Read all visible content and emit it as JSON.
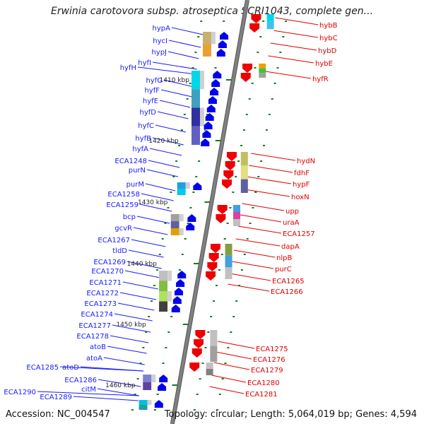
{
  "title": "Erwinia carotovora subsp. atroseptica SCRI1043, complete gen...",
  "accession": "Accession: NC_004547",
  "topology": "Topology: circular; Length: 5,064,019 bp; Genes: 4,594",
  "colors": {
    "backbone": "#808080",
    "left_label": "#1a1aff",
    "right_label": "#e00000",
    "forward_arrow": "#0000ee",
    "reverse_arrow": "#ee0000",
    "tick": "#1a7a1a"
  },
  "scale_labels": [
    "1410 kbp",
    "1420 kbp",
    "1430 kbp",
    "1440 kbp",
    "1450 kbp",
    "1460 kbp"
  ],
  "left_genes": [
    "hypA",
    "hycI",
    "hypJ",
    "hyfI",
    "hyfH",
    "hyfG",
    "hyfF",
    "hyfE",
    "hyfD",
    "hyfC",
    "hyfB",
    "hyfA",
    "ECA1248",
    "purN",
    "purM",
    "ECA1258",
    "ECA1259",
    "bcp",
    "gcvR",
    "ECA1267",
    "tldD",
    "ECA1269",
    "ECA1270",
    "ECA1271",
    "ECA1272",
    "ECA1273",
    "ECA1274",
    "ECA1277",
    "ECA1278",
    "atoB",
    "atoA",
    "ECA1285",
    "atoD",
    "ECA1286",
    "citM",
    "ECA1290",
    "ECA1289"
  ],
  "right_genes": [
    "hybB",
    "hybC",
    "hybD",
    "hybE",
    "hyfR",
    "hydN",
    "fdhF",
    "hypF",
    "hoxN",
    "upp",
    "uraA",
    "ECA1257",
    "dapA",
    "nlpB",
    "purC",
    "ECA1265",
    "ECA1266",
    "ECA1275",
    "ECA1276",
    "ECA1279",
    "ECA1280",
    "ECA1281"
  ]
}
